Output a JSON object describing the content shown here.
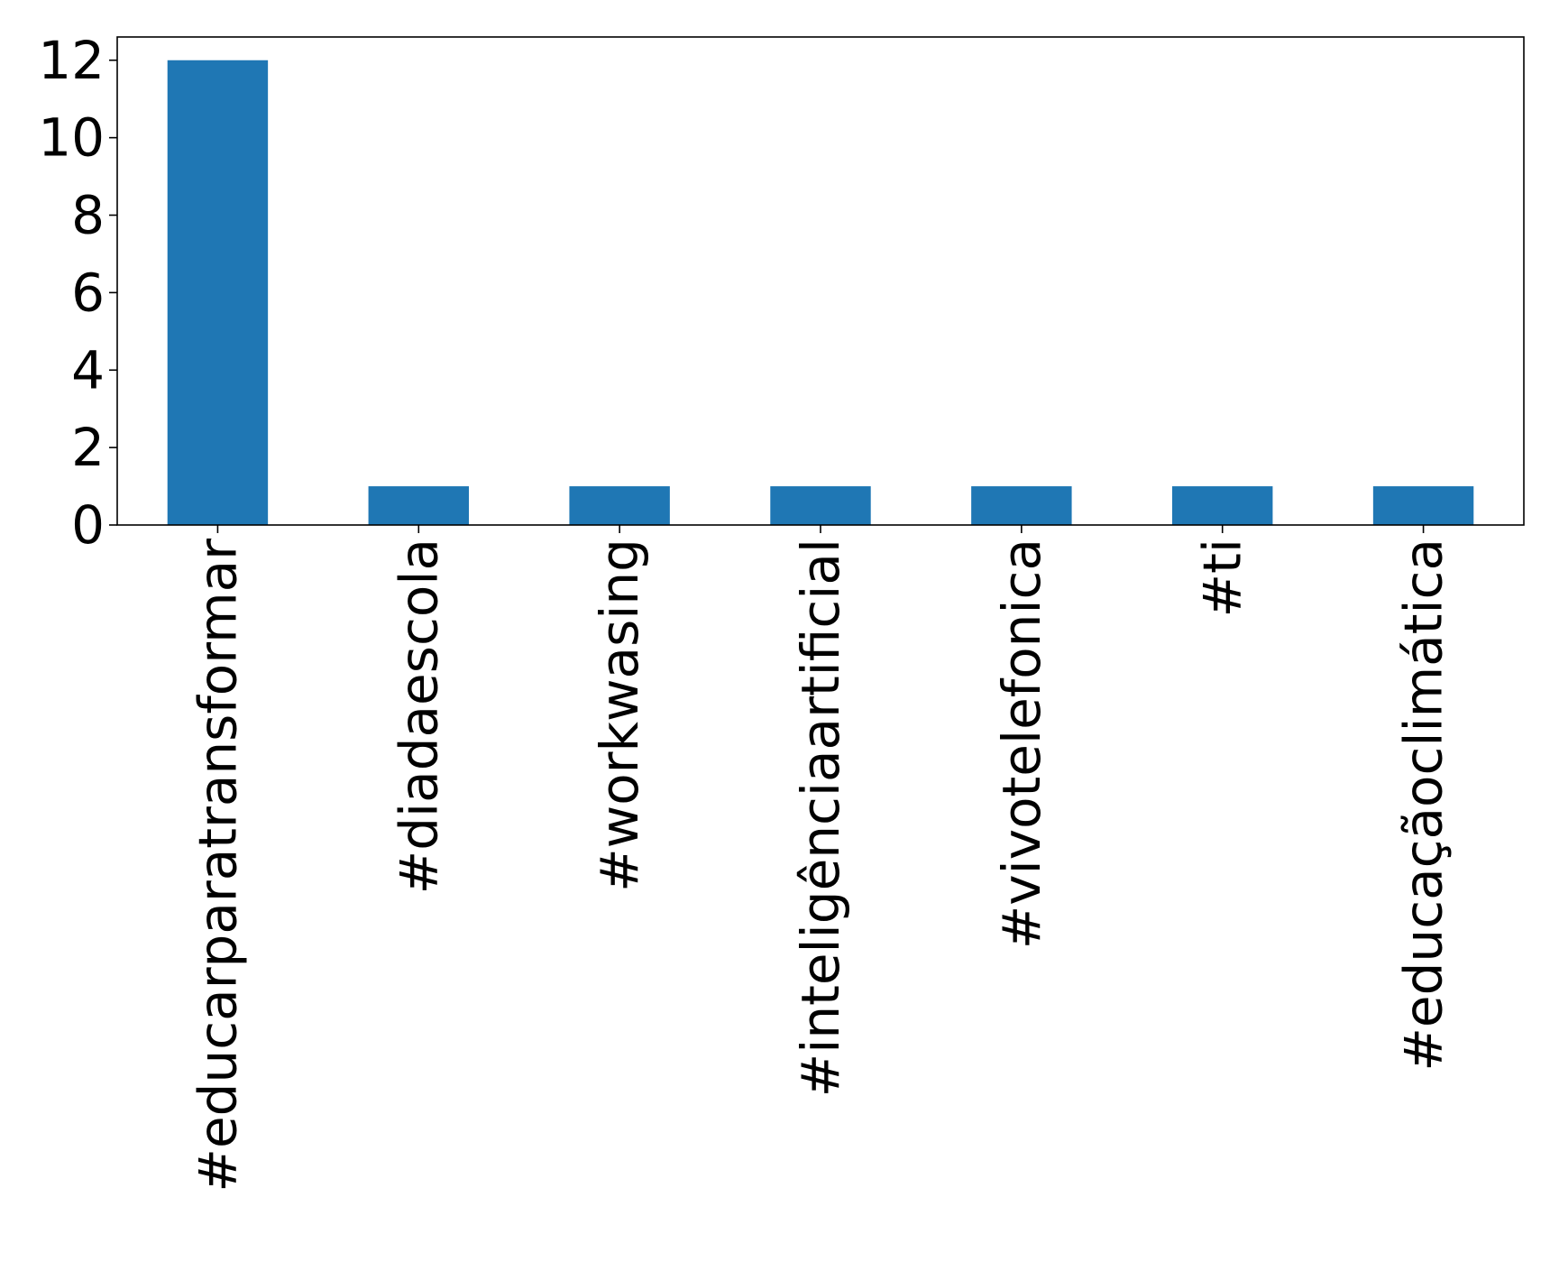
{
  "chart_data": {
    "type": "bar",
    "title": "",
    "xlabel": "",
    "ylabel": "",
    "categories": [
      "#educarparatransformar",
      "#diadaescola",
      "#workwasing",
      "#inteligênciaartificial",
      "#vivotelefonica",
      "#ti",
      "#educaçãoclimática"
    ],
    "values": [
      12,
      1,
      1,
      1,
      1,
      1,
      1
    ],
    "ylim": [
      0,
      12.6
    ],
    "yticks": [
      0,
      2,
      4,
      6,
      8,
      10,
      12
    ],
    "ytick_labels": [
      "0",
      "2",
      "4",
      "6",
      "8",
      "10",
      "12"
    ],
    "grid": false,
    "legend": "none",
    "bar_color": "#1f77b4"
  }
}
